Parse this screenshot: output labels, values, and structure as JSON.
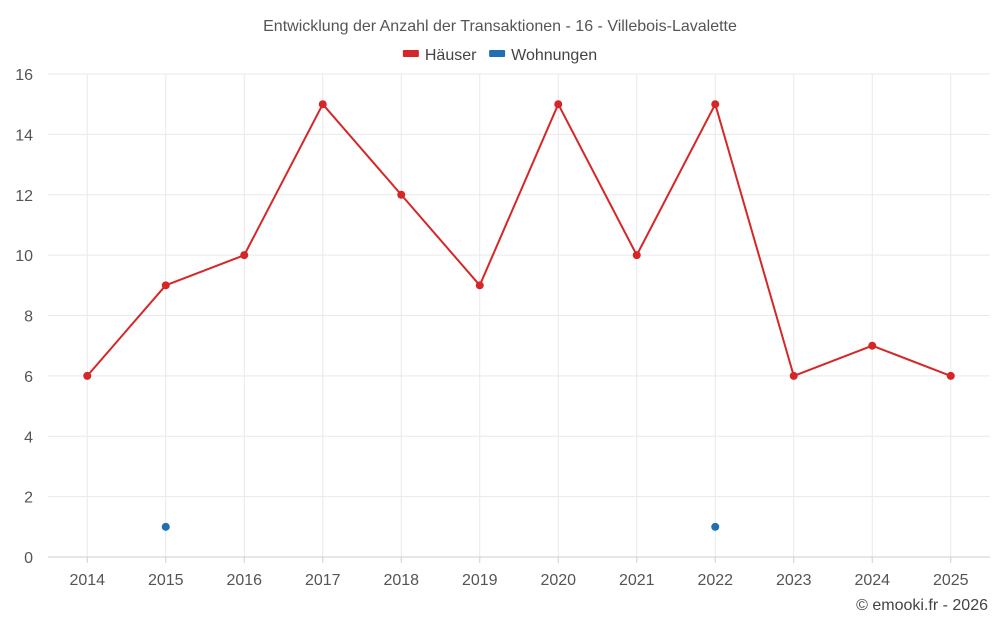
{
  "chart_data": {
    "type": "line",
    "title": "Entwicklung der Anzahl der Transaktionen - 16 - Villebois-Lavalette",
    "categories": [
      "2014",
      "2015",
      "2016",
      "2017",
      "2018",
      "2019",
      "2020",
      "2021",
      "2022",
      "2023",
      "2024",
      "2025"
    ],
    "ylim": [
      0,
      16
    ],
    "yticks": [
      0,
      2,
      4,
      6,
      8,
      10,
      12,
      14,
      16
    ],
    "grid": true,
    "legend_position": "top-center",
    "series": [
      {
        "name": "Häuser",
        "color": "#d62728",
        "style": "line-with-markers",
        "values": [
          6,
          9,
          10,
          15,
          12,
          9,
          15,
          10,
          15,
          6,
          7,
          6
        ]
      },
      {
        "name": "Wohnungen",
        "color": "#1f6fb2",
        "style": "markers-only",
        "values": [
          null,
          1,
          null,
          null,
          null,
          null,
          null,
          null,
          1,
          null,
          null,
          null
        ]
      }
    ]
  },
  "credit": "© emooki.fr - 2026"
}
